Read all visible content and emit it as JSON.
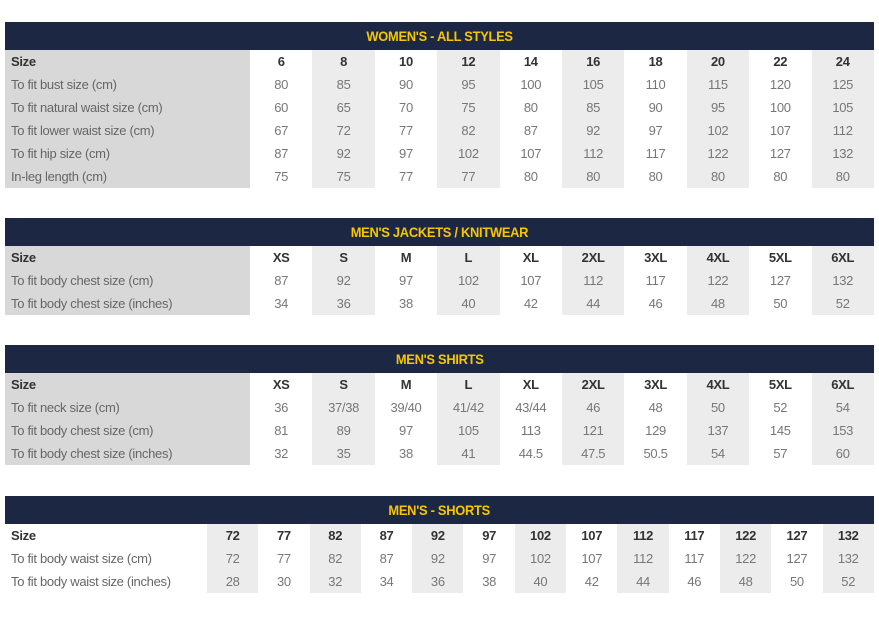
{
  "tables": [
    {
      "title": "WOMEN'S - ALL STYLES",
      "header_label": "Size",
      "sizes": [
        "6",
        "8",
        "10",
        "12",
        "14",
        "16",
        "18",
        "20",
        "22",
        "24"
      ],
      "rows": [
        {
          "label": "To fit bust size (cm)",
          "values": [
            "80",
            "85",
            "90",
            "95",
            "100",
            "105",
            "110",
            "115",
            "120",
            "125"
          ]
        },
        {
          "label": "To fit natural waist size (cm)",
          "values": [
            "60",
            "65",
            "70",
            "75",
            "80",
            "85",
            "90",
            "95",
            "100",
            "105"
          ]
        },
        {
          "label": "To fit lower waist size (cm)",
          "values": [
            "67",
            "72",
            "77",
            "82",
            "87",
            "92",
            "97",
            "102",
            "107",
            "112"
          ]
        },
        {
          "label": "To fit hip size (cm)",
          "values": [
            "87",
            "92",
            "97",
            "102",
            "107",
            "112",
            "117",
            "122",
            "127",
            "132"
          ]
        },
        {
          "label": "In-leg length (cm)",
          "values": [
            "75",
            "75",
            "77",
            "77",
            "80",
            "80",
            "80",
            "80",
            "80",
            "80"
          ]
        }
      ]
    },
    {
      "title": "MEN'S JACKETS / KNITWEAR",
      "header_label": "Size",
      "sizes": [
        "XS",
        "S",
        "M",
        "L",
        "XL",
        "2XL",
        "3XL",
        "4XL",
        "5XL",
        "6XL"
      ],
      "rows": [
        {
          "label": "To fit body chest size (cm)",
          "values": [
            "87",
            "92",
            "97",
            "102",
            "107",
            "112",
            "117",
            "122",
            "127",
            "132"
          ]
        },
        {
          "label": "To fit body chest size (inches)",
          "values": [
            "34",
            "36",
            "38",
            "40",
            "42",
            "44",
            "46",
            "48",
            "50",
            "52"
          ]
        }
      ]
    },
    {
      "title": "MEN'S SHIRTS",
      "header_label": "Size",
      "sizes": [
        "XS",
        "S",
        "M",
        "L",
        "XL",
        "2XL",
        "3XL",
        "4XL",
        "5XL",
        "6XL"
      ],
      "rows": [
        {
          "label": "To fit neck size (cm)",
          "values": [
            "36",
            "37/38",
            "39/40",
            "41/42",
            "43/44",
            "46",
            "48",
            "50",
            "52",
            "54"
          ]
        },
        {
          "label": "To fit body chest size (cm)",
          "values": [
            "81",
            "89",
            "97",
            "105",
            "113",
            "121",
            "129",
            "137",
            "145",
            "153"
          ]
        },
        {
          "label": "To fit body chest size (inches)",
          "values": [
            "32",
            "35",
            "38",
            "41",
            "44.5",
            "47.5",
            "50.5",
            "54",
            "57",
            "60"
          ]
        }
      ]
    },
    {
      "title": "MEN'S - SHORTS",
      "header_label": "Size",
      "sizes": [
        "72",
        "77",
        "82",
        "87",
        "92",
        "97",
        "102",
        "107",
        "112",
        "117",
        "122",
        "127",
        "132"
      ],
      "rows": [
        {
          "label": "To fit body waist size (cm)",
          "values": [
            "72",
            "77",
            "82",
            "87",
            "92",
            "97",
            "102",
            "107",
            "112",
            "117",
            "122",
            "127",
            "132"
          ]
        },
        {
          "label": "To fit body waist size (inches)",
          "values": [
            "28",
            "30",
            "32",
            "34",
            "36",
            "38",
            "40",
            "42",
            "44",
            "46",
            "48",
            "50",
            "52"
          ]
        }
      ]
    }
  ]
}
